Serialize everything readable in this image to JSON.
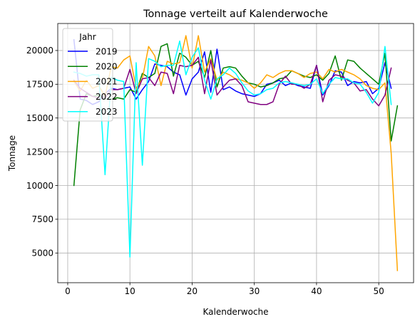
{
  "chart_data": {
    "type": "line",
    "title": "Tonnage verteilt auf Kalenderwoche",
    "xlabel": "Kalenderwoche",
    "ylabel": "Tonnage",
    "xlim": [
      -1.6,
      55.6
    ],
    "ylim": [
      2800,
      22000
    ],
    "xticks": [
      0,
      10,
      20,
      30,
      40,
      50
    ],
    "yticks": [
      5000,
      7500,
      10000,
      12500,
      15000,
      17500,
      20000
    ],
    "grid": true,
    "legend": {
      "title": "Jahr",
      "position": "upper left"
    },
    "series": [
      {
        "name": "2019",
        "color": "#0000ff",
        "x": [
          1,
          2,
          3,
          4,
          5,
          6,
          7,
          8,
          9,
          10,
          11,
          12,
          13,
          14,
          15,
          16,
          17,
          18,
          19,
          20,
          21,
          22,
          23,
          24,
          25,
          26,
          27,
          28,
          29,
          30,
          31,
          32,
          33,
          34,
          35,
          36,
          37,
          38,
          39,
          40,
          41,
          42,
          43,
          44,
          45,
          46,
          47,
          48,
          49,
          50,
          51,
          52
        ],
        "values": [
          20800,
          16400,
          16300,
          16000,
          16200,
          16800,
          17200,
          17100,
          17200,
          17300,
          16400,
          17100,
          17700,
          19000,
          18900,
          18800,
          18400,
          18200,
          16700,
          17900,
          18400,
          19900,
          16900,
          20100,
          17100,
          17300,
          17000,
          16800,
          16700,
          16600,
          16800,
          17500,
          17600,
          17800,
          17400,
          17600,
          17400,
          17300,
          17200,
          18900,
          16700,
          17400,
          18500,
          18400,
          17400,
          17700,
          17600,
          17700,
          16800,
          17200,
          19100,
          17200
        ]
      },
      {
        "name": "2020",
        "color": "#008000",
        "x": [
          1,
          2,
          3,
          4,
          5,
          6,
          7,
          8,
          9,
          10,
          11,
          12,
          13,
          14,
          15,
          16,
          17,
          18,
          19,
          20,
          21,
          22,
          23,
          24,
          25,
          26,
          27,
          28,
          29,
          30,
          31,
          32,
          33,
          34,
          35,
          36,
          37,
          38,
          39,
          40,
          41,
          42,
          43,
          44,
          45,
          46,
          47,
          48,
          49,
          50,
          51,
          52,
          53
        ],
        "values": [
          10000,
          15600,
          16800,
          16600,
          16700,
          16400,
          16400,
          16500,
          16400,
          17100,
          16900,
          18300,
          18000,
          18300,
          20300,
          20500,
          18100,
          19800,
          19500,
          18900,
          19200,
          18000,
          20000,
          17300,
          18700,
          18800,
          18700,
          18100,
          17600,
          17500,
          17300,
          17400,
          17600,
          17900,
          18000,
          18500,
          18300,
          18100,
          18000,
          18200,
          17800,
          18300,
          19600,
          17800,
          19300,
          19200,
          18700,
          18300,
          17900,
          17500,
          19800,
          13300,
          15900
        ]
      },
      {
        "name": "2021",
        "color": "#ffa500",
        "x": [
          1,
          2,
          3,
          4,
          5,
          6,
          7,
          8,
          9,
          10,
          11,
          12,
          13,
          14,
          15,
          16,
          17,
          18,
          19,
          20,
          21,
          22,
          23,
          24,
          25,
          26,
          27,
          28,
          29,
          30,
          31,
          32,
          33,
          34,
          35,
          36,
          37,
          38,
          39,
          40,
          41,
          42,
          43,
          44,
          45,
          46,
          47,
          48,
          49,
          50,
          51,
          52,
          53
        ],
        "values": [
          17700,
          17000,
          17800,
          17200,
          17400,
          16600,
          18800,
          18700,
          19300,
          19600,
          17200,
          17900,
          20300,
          19600,
          17400,
          19200,
          19000,
          19100,
          21100,
          18700,
          21100,
          18400,
          19400,
          17800,
          18400,
          18200,
          17900,
          17800,
          17600,
          17200,
          17600,
          18200,
          18000,
          18300,
          18500,
          18500,
          18300,
          18000,
          18300,
          18400,
          17900,
          18600,
          18400,
          18600,
          18400,
          18200,
          17900,
          17400,
          17200,
          17100,
          17600,
          12400,
          3700
        ]
      },
      {
        "name": "2022",
        "color": "#800080",
        "x": [
          1,
          2,
          3,
          4,
          5,
          6,
          7,
          8,
          9,
          10,
          11,
          12,
          13,
          14,
          15,
          16,
          17,
          18,
          19,
          20,
          21,
          22,
          23,
          24,
          25,
          26,
          27,
          28,
          29,
          30,
          31,
          32,
          33,
          34,
          35,
          36,
          37,
          38,
          39,
          40,
          41,
          42,
          43,
          44,
          45,
          46,
          47,
          48,
          49,
          50,
          51,
          52
        ],
        "values": [
          17800,
          17200,
          16900,
          16600,
          16500,
          16500,
          17100,
          17100,
          17200,
          18600,
          16800,
          17900,
          18000,
          17400,
          18400,
          18300,
          16800,
          18900,
          18800,
          18900,
          19500,
          16800,
          19300,
          16700,
          17300,
          17800,
          17900,
          17400,
          16200,
          16100,
          16000,
          16000,
          16200,
          17500,
          18100,
          17500,
          17500,
          17200,
          17500,
          18900,
          16200,
          17800,
          18200,
          18100,
          17800,
          17600,
          17000,
          17100,
          16400,
          15900,
          16700,
          18700
        ]
      },
      {
        "name": "2023",
        "color": "#00ffff",
        "x": [
          1,
          2,
          3,
          4,
          5,
          6,
          7,
          8,
          9,
          10,
          11,
          12,
          13,
          14,
          15,
          16,
          17,
          18,
          19,
          20,
          21,
          22,
          23,
          24,
          25,
          26,
          27,
          28,
          29,
          30,
          31,
          32,
          33,
          34,
          35,
          36,
          37,
          38,
          39,
          40,
          41,
          42,
          43,
          44,
          45,
          46,
          47,
          48,
          49,
          50,
          51,
          52
        ],
        "values": [
          18400,
          18300,
          18100,
          18200,
          18200,
          10800,
          18000,
          17800,
          17700,
          4700,
          19100,
          11500,
          19400,
          19200,
          18800,
          18900,
          18900,
          20700,
          18200,
          19500,
          20200,
          17800,
          16400,
          17900,
          18200,
          18700,
          18300,
          17600,
          17000,
          16700,
          16800,
          17100,
          17200,
          17600,
          17700,
          17600,
          17500,
          17400,
          17500,
          17900,
          16800,
          17500,
          18000,
          17900,
          17900,
          17600,
          17500,
          16900,
          16100,
          16900,
          20300,
          16000
        ]
      }
    ]
  }
}
